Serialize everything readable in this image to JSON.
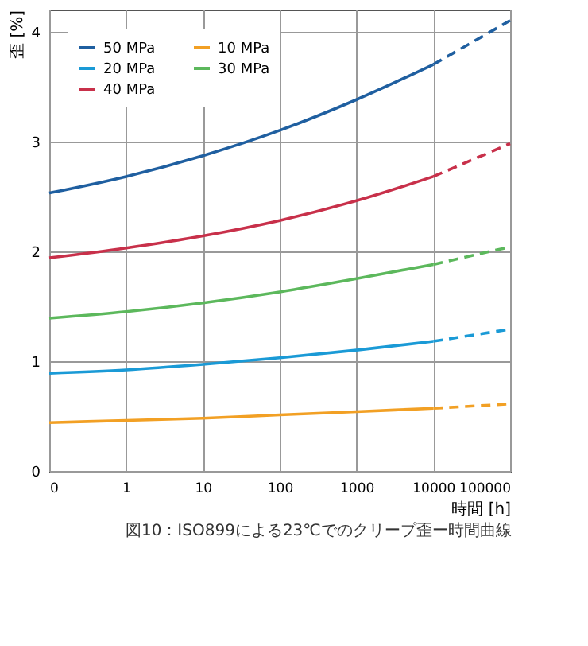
{
  "chart_data": {
    "type": "line",
    "xlabel": "時間 [h]",
    "ylabel": "歪 [%]",
    "annotations": [
      "図10：ISO899による23℃でのクリープ歪ー時間曲線"
    ],
    "categories": [
      "0",
      "1",
      "10",
      "100",
      "1000",
      "10000",
      "100000"
    ],
    "ylim": [
      0,
      4.2
    ],
    "yticks": [
      0,
      1,
      2,
      3,
      4
    ],
    "grid": true,
    "legend": "top left",
    "marker": "none",
    "series": [
      {
        "name": "50 MPa",
        "color": "#1f5fa0",
        "line_style": "solid",
        "values": [
          2.53,
          2.68,
          2.87,
          3.1,
          3.38,
          3.7,
          null
        ]
      },
      {
        "name": "20 MPa",
        "color": "#1a9ad6",
        "line_style": "solid",
        "values": [
          0.89,
          0.92,
          0.97,
          1.03,
          1.1,
          1.18,
          null
        ]
      },
      {
        "name": "40 MPa",
        "color": "#c8304a",
        "line_style": "solid",
        "values": [
          1.94,
          2.03,
          2.14,
          2.28,
          2.46,
          2.68,
          null
        ]
      },
      {
        "name": "10 MPa",
        "color": "#f2a024",
        "line_style": "solid",
        "values": [
          0.44,
          0.46,
          0.48,
          0.51,
          0.54,
          0.57,
          null
        ]
      },
      {
        "name": "30 MPa",
        "color": "#5cb85c",
        "line_style": "solid",
        "values": [
          1.39,
          1.45,
          1.53,
          1.63,
          1.75,
          1.88,
          null
        ]
      },
      {
        "color": "#1f5fa0",
        "line_style": "dashed",
        "values": [
          null,
          null,
          null,
          null,
          null,
          3.7,
          4.1
        ]
      },
      {
        "color": "#1a9ad6",
        "line_style": "dashed",
        "values": [
          null,
          null,
          null,
          null,
          null,
          1.18,
          1.29
        ]
      },
      {
        "color": "#c8304a",
        "line_style": "dashed",
        "values": [
          null,
          null,
          null,
          null,
          null,
          2.68,
          2.98
        ]
      },
      {
        "color": "#f2a024",
        "line_style": "dashed",
        "values": [
          null,
          null,
          null,
          null,
          null,
          0.57,
          0.61
        ]
      },
      {
        "color": "#5cb85c",
        "line_style": "dashed",
        "values": [
          null,
          null,
          null,
          null,
          null,
          1.88,
          2.04
        ]
      }
    ]
  }
}
